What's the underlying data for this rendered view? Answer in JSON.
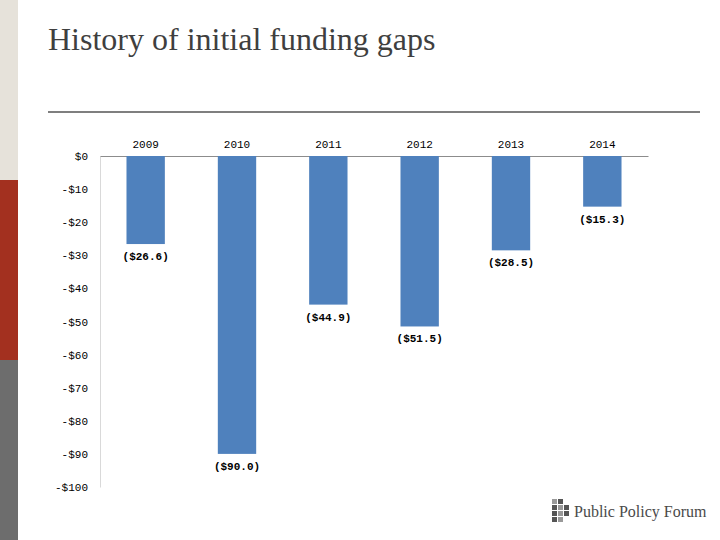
{
  "chart_data": {
    "type": "bar",
    "title": "History of initial funding gaps",
    "categories": [
      "2009",
      "2010",
      "2011",
      "2012",
      "2013",
      "2014"
    ],
    "values": [
      -26.6,
      -90.0,
      -44.9,
      -51.5,
      -28.5,
      -15.3
    ],
    "value_labels": [
      "($26.6)",
      "($90.0)",
      "($44.9)",
      "($51.5)",
      "($28.5)",
      "($15.3)"
    ],
    "color": "#4f81bd",
    "ylim": [
      -100,
      0
    ],
    "yticks": [
      {
        "value": 0,
        "label": "$0"
      },
      {
        "value": -10,
        "label": "-$10"
      },
      {
        "value": -20,
        "label": "-$20"
      },
      {
        "value": -30,
        "label": "-$30"
      },
      {
        "value": -40,
        "label": "-$40"
      },
      {
        "value": -50,
        "label": "-$50"
      },
      {
        "value": -60,
        "label": "-$60"
      },
      {
        "value": -70,
        "label": "-$70"
      },
      {
        "value": -80,
        "label": "-$80"
      },
      {
        "value": -90,
        "label": "-$90"
      },
      {
        "value": -100,
        "label": "-$100"
      }
    ],
    "grid": false,
    "data_labels": true
  },
  "logo": {
    "text": "Public Policy Forum"
  }
}
